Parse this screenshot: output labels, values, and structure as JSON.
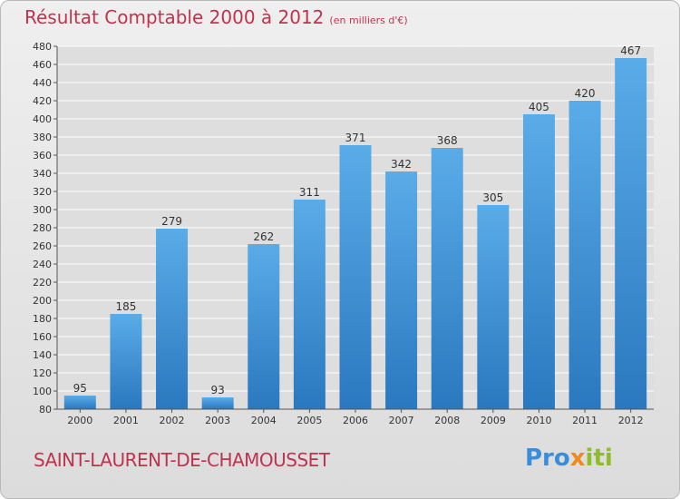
{
  "header": {
    "title": "Résultat Comptable 2000 à 2012",
    "subtitle": "(en milliers d'€)"
  },
  "footer": {
    "commune": "SAINT-LAURENT-DE-CHAMOUSSET",
    "logo": {
      "p1": "Pro",
      "p2": "x",
      "p3": "iti"
    }
  },
  "colors": {
    "bar_top": "#5aace8",
    "bar_bottom": "#2a78bf",
    "title": "#c0334f"
  },
  "chart_data": {
    "type": "bar",
    "title": "Résultat Comptable 2000 à 2012",
    "subtitle": "(en milliers d'€)",
    "xlabel": "",
    "ylabel": "",
    "categories": [
      "2000",
      "2001",
      "2002",
      "2003",
      "2004",
      "2005",
      "2006",
      "2007",
      "2008",
      "2009",
      "2010",
      "2011",
      "2012"
    ],
    "values": [
      95,
      185,
      279,
      93,
      262,
      311,
      371,
      342,
      368,
      305,
      405,
      420,
      467
    ],
    "ylim": [
      80,
      480
    ],
    "yticks": [
      80,
      100,
      120,
      140,
      160,
      180,
      200,
      220,
      240,
      260,
      280,
      300,
      320,
      340,
      360,
      380,
      400,
      420,
      440,
      460,
      480
    ],
    "grid": true
  }
}
